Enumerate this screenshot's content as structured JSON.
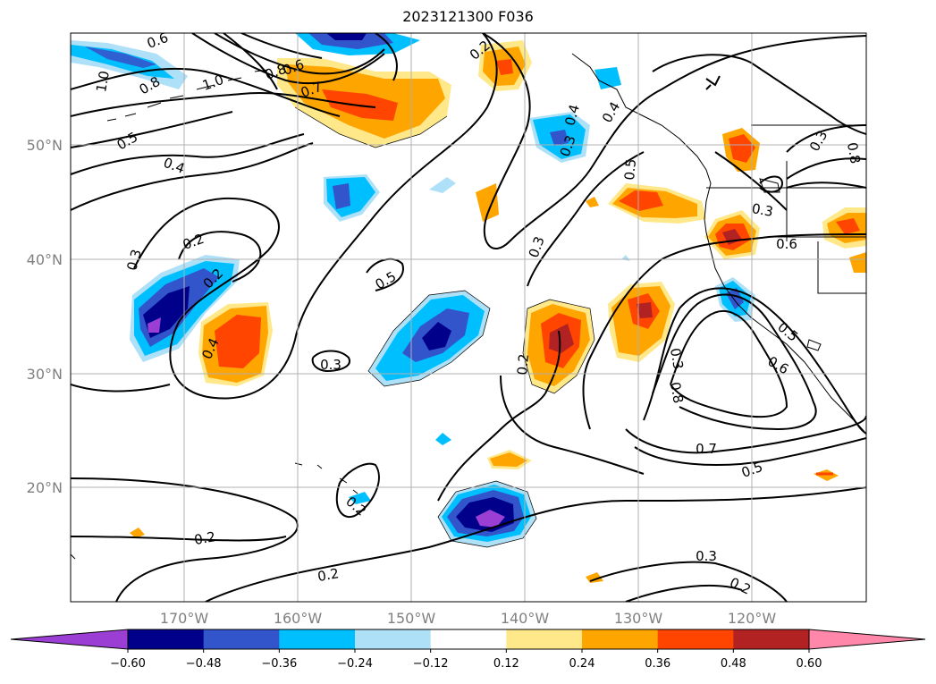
{
  "title": "2023121300 F036",
  "map": {
    "lat_labels": [
      "50°N",
      "40°N",
      "30°N",
      "20°N"
    ],
    "lon_labels": [
      "170°W",
      "160°W",
      "150°W",
      "140°W",
      "130°W",
      "120°W"
    ],
    "grid": true
  },
  "colorbar": {
    "ticks": [
      "−0.60",
      "−0.48",
      "−0.36",
      "−0.24",
      "−0.12",
      "0.12",
      "0.24",
      "0.36",
      "0.48",
      "0.60"
    ],
    "colors": [
      "#9b3fd4",
      "#00008b",
      "#3355cc",
      "#00bfff",
      "#aee0f8",
      "#ffffff",
      "#ffe88a",
      "#ffa500",
      "#ff4500",
      "#b22222",
      "#ff88aa"
    ]
  },
  "contour_labels": [
    "0.6",
    "1.0",
    "0.8",
    "0.5",
    "0.4",
    "0.3",
    "0.2",
    "0.2",
    "0.4",
    "0.5",
    "0.3",
    "0.2",
    "0.2",
    "0.2",
    "0.2",
    "0.2",
    "0.3",
    "0.3",
    "0.4",
    "0.5",
    "0.4",
    "0.3",
    "0.8",
    "0.7",
    "0.6",
    "0.5",
    "0.3",
    "0.6",
    "0.5",
    "0.3",
    "0.2",
    "0.3",
    "0.8",
    "1.0",
    "0.7",
    "0.6",
    "0.8"
  ],
  "icons": {
    "map": "weather-map-panel",
    "colorbar": "colorbar-legend"
  }
}
